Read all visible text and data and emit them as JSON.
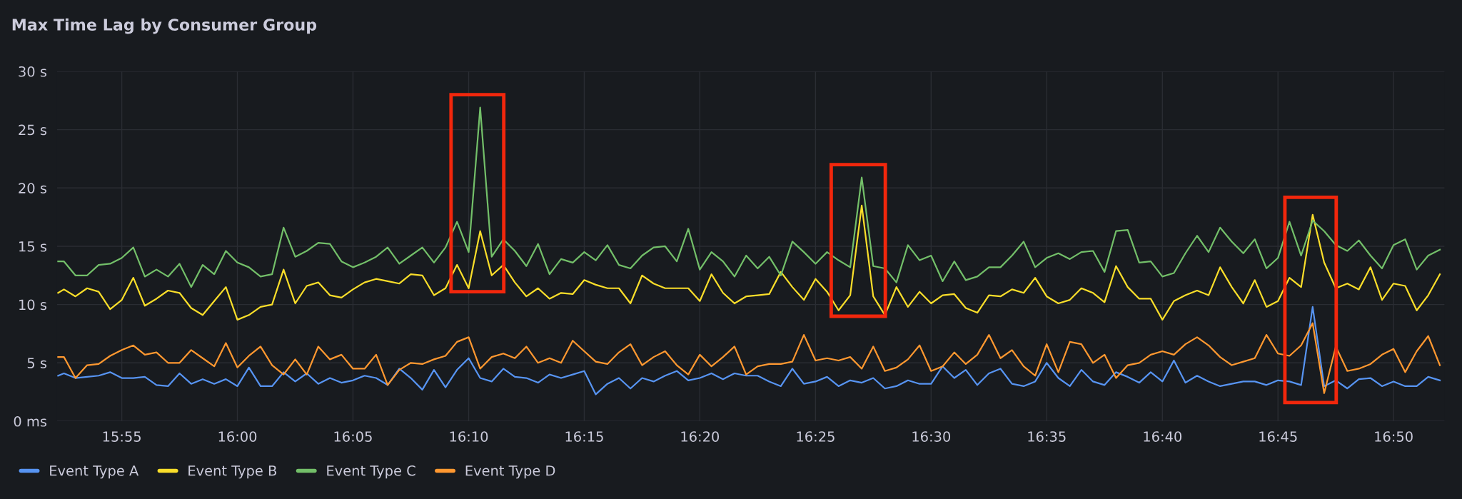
{
  "chart_data": {
    "type": "line",
    "title": "Max Time Lag by Consumer Group",
    "x": [
      15.8708,
      15.875,
      15.8833,
      15.8917,
      15.9,
      15.9083,
      15.9167,
      15.925,
      15.9333,
      15.9417,
      15.95,
      15.9583,
      15.9667,
      15.975,
      15.9833,
      15.9917,
      16,
      16.0083,
      16.0167,
      16.025,
      16.0333,
      16.0417,
      16.05,
      16.0583,
      16.0667,
      16.075,
      16.0833,
      16.0917,
      16.1,
      16.1083,
      16.1167,
      16.125,
      16.1333,
      16.1417,
      16.15,
      16.1583,
      16.1667,
      16.175,
      16.1833,
      16.1917,
      16.2,
      16.2083,
      16.2167,
      16.225,
      16.2333,
      16.2417,
      16.25,
      16.2583,
      16.2667,
      16.275,
      16.2833,
      16.2917,
      16.3,
      16.3083,
      16.3167,
      16.325,
      16.3333,
      16.3417,
      16.35,
      16.3583,
      16.3667,
      16.375,
      16.3833,
      16.3917,
      16.4,
      16.4083,
      16.4167,
      16.425,
      16.4333,
      16.4417,
      16.45,
      16.4583,
      16.4667,
      16.475,
      16.4833,
      16.4917,
      16.5,
      16.5083,
      16.5167,
      16.525,
      16.5333,
      16.5417,
      16.55,
      16.5583,
      16.5667,
      16.575,
      16.5833,
      16.5917,
      16.6,
      16.6083,
      16.6167,
      16.625,
      16.6333,
      16.6417,
      16.65,
      16.6583,
      16.6667,
      16.675,
      16.6833,
      16.6917,
      16.7,
      16.7083,
      16.7167,
      16.725,
      16.7333,
      16.7417,
      16.75,
      16.7583,
      16.7667,
      16.775,
      16.7833,
      16.7917,
      16.8,
      16.8083,
      16.8167,
      16.825,
      16.8333,
      16.8417,
      16.85,
      16.8583,
      16.8667
    ],
    "series": [
      {
        "name": "Event Type A",
        "color": "#5794f2",
        "values": [
          3.9,
          4.1,
          3.7,
          3.8,
          3.9,
          4.2,
          3.7,
          3.7,
          3.8,
          3.1,
          3.0,
          4.1,
          3.2,
          3.6,
          3.2,
          3.6,
          3.0,
          4.6,
          3.0,
          3.0,
          4.2,
          3.4,
          4.1,
          3.2,
          3.7,
          3.3,
          3.5,
          3.9,
          3.7,
          3.1,
          4.5,
          3.7,
          2.7,
          4.4,
          2.9,
          4.4,
          5.4,
          3.7,
          3.4,
          4.5,
          3.8,
          3.7,
          3.3,
          4.0,
          3.7,
          4.0,
          4.3,
          2.3,
          3.2,
          3.7,
          2.8,
          3.7,
          3.4,
          3.9,
          4.3,
          3.5,
          3.7,
          4.1,
          3.6,
          4.1,
          3.9,
          3.9,
          3.4,
          3.0,
          4.5,
          3.2,
          3.4,
          3.8,
          3.0,
          3.5,
          3.3,
          3.7,
          2.8,
          3.0,
          3.5,
          3.2,
          3.2,
          4.7,
          3.7,
          4.4,
          3.1,
          4.1,
          4.5,
          3.2,
          3.0,
          3.4,
          5.0,
          3.7,
          3.0,
          4.4,
          3.4,
          3.1,
          4.2,
          3.8,
          3.3,
          4.2,
          3.4,
          5.2,
          3.3,
          3.9,
          3.4,
          3.0,
          3.2,
          3.4,
          3.4,
          3.1,
          3.5,
          3.4,
          3.1,
          9.8,
          3.0,
          3.5,
          2.8,
          3.6,
          3.7,
          3.0,
          3.4,
          3.0,
          3.0,
          3.8,
          3.5
        ]
      },
      {
        "name": "Event Type B",
        "color": "#fade2a",
        "values": [
          11.0,
          11.3,
          10.7,
          11.4,
          11.1,
          9.6,
          10.4,
          12.3,
          9.9,
          10.5,
          11.2,
          11.0,
          9.7,
          9.1,
          10.3,
          11.5,
          8.7,
          9.1,
          9.8,
          10.0,
          13.0,
          10.1,
          11.6,
          11.9,
          10.8,
          10.6,
          11.3,
          11.9,
          12.2,
          12.0,
          11.8,
          12.6,
          12.5,
          10.8,
          11.4,
          13.4,
          11.4,
          16.3,
          12.5,
          13.4,
          11.9,
          10.7,
          11.4,
          10.5,
          11.0,
          10.9,
          12.1,
          11.7,
          11.4,
          11.4,
          10.1,
          12.5,
          11.8,
          11.4,
          11.4,
          11.4,
          10.3,
          12.6,
          11.0,
          10.1,
          10.7,
          10.8,
          10.9,
          12.8,
          11.5,
          10.4,
          12.2,
          11.1,
          9.5,
          10.8,
          18.5,
          10.7,
          9.1,
          11.5,
          9.8,
          11.1,
          10.1,
          10.8,
          10.9,
          9.7,
          9.3,
          10.8,
          10.7,
          11.3,
          11.0,
          12.3,
          10.7,
          10.1,
          10.4,
          11.4,
          11.0,
          10.2,
          13.3,
          11.5,
          10.5,
          10.5,
          8.7,
          10.3,
          10.8,
          11.2,
          10.8,
          13.2,
          11.5,
          10.1,
          12.1,
          9.8,
          10.3,
          12.3,
          11.5,
          17.7,
          13.6,
          11.4,
          11.8,
          11.3,
          13.2,
          10.4,
          11.8,
          11.6,
          9.5,
          10.8,
          12.6
        ]
      },
      {
        "name": "Event Type C",
        "color": "#73bf69",
        "values": [
          13.7,
          13.7,
          12.5,
          12.5,
          13.4,
          13.5,
          14.0,
          14.9,
          12.4,
          13.0,
          12.4,
          13.5,
          11.5,
          13.4,
          12.6,
          14.6,
          13.6,
          13.2,
          12.4,
          12.6,
          16.6,
          14.1,
          14.6,
          15.3,
          15.2,
          13.7,
          13.2,
          13.6,
          14.1,
          14.9,
          13.5,
          14.2,
          14.9,
          13.6,
          14.9,
          17.1,
          14.5,
          26.9,
          14.1,
          15.6,
          14.6,
          13.3,
          15.2,
          12.6,
          13.9,
          13.6,
          14.5,
          13.8,
          15.1,
          13.4,
          13.1,
          14.2,
          14.9,
          15.0,
          13.7,
          16.5,
          13.0,
          14.5,
          13.7,
          12.4,
          14.2,
          13.1,
          14.1,
          12.5,
          15.4,
          14.5,
          13.5,
          14.5,
          13.8,
          13.2,
          20.9,
          13.3,
          13.1,
          11.9,
          15.1,
          13.8,
          14.2,
          12.0,
          13.7,
          12.1,
          12.4,
          13.2,
          13.2,
          14.2,
          15.4,
          13.2,
          14.0,
          14.4,
          13.9,
          14.5,
          14.6,
          12.8,
          16.3,
          16.4,
          13.6,
          13.7,
          12.4,
          12.7,
          14.4,
          15.9,
          14.5,
          16.6,
          15.4,
          14.4,
          15.6,
          13.1,
          14.0,
          17.1,
          14.2,
          17.2,
          16.3,
          15.1,
          14.6,
          15.5,
          14.2,
          13.1,
          15.1,
          15.6,
          13.0,
          14.2,
          14.7
        ]
      },
      {
        "name": "Event Type D",
        "color": "#ff9830",
        "values": [
          5.5,
          5.5,
          3.7,
          4.8,
          4.9,
          5.6,
          6.1,
          6.5,
          5.7,
          5.9,
          5.0,
          5.0,
          6.1,
          5.4,
          4.7,
          6.7,
          4.6,
          5.6,
          6.4,
          4.8,
          4.0,
          5.3,
          4.0,
          6.4,
          5.3,
          5.7,
          4.5,
          4.5,
          5.7,
          3.1,
          4.4,
          5.0,
          4.9,
          5.3,
          5.6,
          6.8,
          7.2,
          4.5,
          5.5,
          5.8,
          5.4,
          6.4,
          5.0,
          5.4,
          5.0,
          6.9,
          6.0,
          5.1,
          4.9,
          5.9,
          6.6,
          4.8,
          5.5,
          6.0,
          4.8,
          4.0,
          5.7,
          4.7,
          5.5,
          6.4,
          4.0,
          4.7,
          4.9,
          4.9,
          5.1,
          7.4,
          5.2,
          5.4,
          5.2,
          5.5,
          4.5,
          6.4,
          4.3,
          4.6,
          5.3,
          6.5,
          4.3,
          4.7,
          5.9,
          4.9,
          5.7,
          7.4,
          5.4,
          6.1,
          4.7,
          3.9,
          6.6,
          4.2,
          6.8,
          6.6,
          5.0,
          5.7,
          3.7,
          4.8,
          5.0,
          5.7,
          6.0,
          5.7,
          6.6,
          7.2,
          6.5,
          5.5,
          4.8,
          5.1,
          5.4,
          7.4,
          5.8,
          5.6,
          6.5,
          8.4,
          2.4,
          6.4,
          4.3,
          4.5,
          4.9,
          5.7,
          6.2,
          4.2,
          6.0,
          7.3,
          4.8
        ]
      }
    ],
    "xlim": [
      15.87,
      16.87
    ],
    "xticks": [
      {
        "value": 15.9167,
        "label": "15:55"
      },
      {
        "value": 16,
        "label": "16:00"
      },
      {
        "value": 16.0833,
        "label": "16:05"
      },
      {
        "value": 16.1667,
        "label": "16:10"
      },
      {
        "value": 16.25,
        "label": "16:15"
      },
      {
        "value": 16.3333,
        "label": "16:20"
      },
      {
        "value": 16.4167,
        "label": "16:25"
      },
      {
        "value": 16.5,
        "label": "16:30"
      },
      {
        "value": 16.5833,
        "label": "16:35"
      },
      {
        "value": 16.6667,
        "label": "16:40"
      },
      {
        "value": 16.75,
        "label": "16:45"
      },
      {
        "value": 16.8333,
        "label": "16:50"
      }
    ],
    "ylim": [
      0,
      30
    ],
    "yticks": [
      {
        "value": 0,
        "label": "0 ms"
      },
      {
        "value": 5,
        "label": "5 s"
      },
      {
        "value": 10,
        "label": "10 s"
      },
      {
        "value": 15,
        "label": "15 s"
      },
      {
        "value": 20,
        "label": "20 s"
      },
      {
        "value": 25,
        "label": "25 s"
      },
      {
        "value": 30,
        "label": "30 s"
      }
    ],
    "grid": true,
    "legend": "bottom",
    "marker": "none",
    "line_style": "solid"
  }
}
